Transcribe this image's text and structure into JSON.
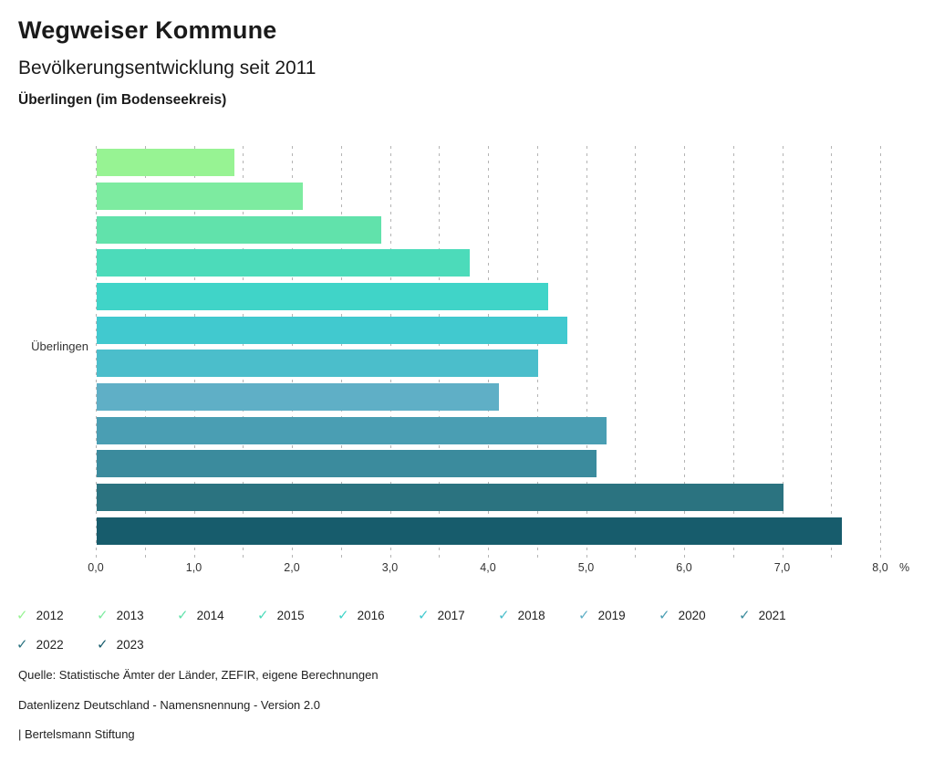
{
  "header": {
    "title": "Wegweiser Kommune",
    "subtitle": "Bevölkerungsentwicklung seit 2011",
    "region": "Überlingen (im Bodenseekreis)"
  },
  "chart_data": {
    "type": "bar",
    "orientation": "horizontal",
    "title": "Bevölkerungsentwicklung seit 2011",
    "group_label": "Überlingen",
    "xlabel": "%",
    "xlim": [
      0,
      8
    ],
    "x_tick_step": 1.0,
    "x_tick_labels": [
      "0,0",
      "1,0",
      "2,0",
      "3,0",
      "4,0",
      "5,0",
      "6,0",
      "7,0",
      "8,0"
    ],
    "grid": "vertical dashed every 0.5",
    "legend_position": "bottom",
    "series": [
      {
        "year": "2012",
        "value": 1.4,
        "color": "#97f393"
      },
      {
        "year": "2013",
        "value": 2.1,
        "color": "#7deba0"
      },
      {
        "year": "2014",
        "value": 2.9,
        "color": "#61e2ab"
      },
      {
        "year": "2015",
        "value": 3.8,
        "color": "#4cdbba"
      },
      {
        "year": "2016",
        "value": 4.6,
        "color": "#40d4c8"
      },
      {
        "year": "2017",
        "value": 4.8,
        "color": "#41c9cf"
      },
      {
        "year": "2018",
        "value": 4.5,
        "color": "#4bbecb"
      },
      {
        "year": "2019",
        "value": 4.1,
        "color": "#5fafc6"
      },
      {
        "year": "2020",
        "value": 5.2,
        "color": "#4a9eb3"
      },
      {
        "year": "2021",
        "value": 5.1,
        "color": "#3b8b9d"
      },
      {
        "year": "2022",
        "value": 7.0,
        "color": "#2b7380"
      },
      {
        "year": "2023",
        "value": 7.6,
        "color": "#175c6c"
      }
    ]
  },
  "legend": {
    "check_glyph": "✓"
  },
  "footer": {
    "source": "Quelle: Statistische Ämter der Länder, ZEFIR, eigene Berechnungen",
    "license": "Datenlizenz Deutschland - Namensnennung - Version 2.0",
    "attribution": "| Bertelsmann Stiftung"
  }
}
